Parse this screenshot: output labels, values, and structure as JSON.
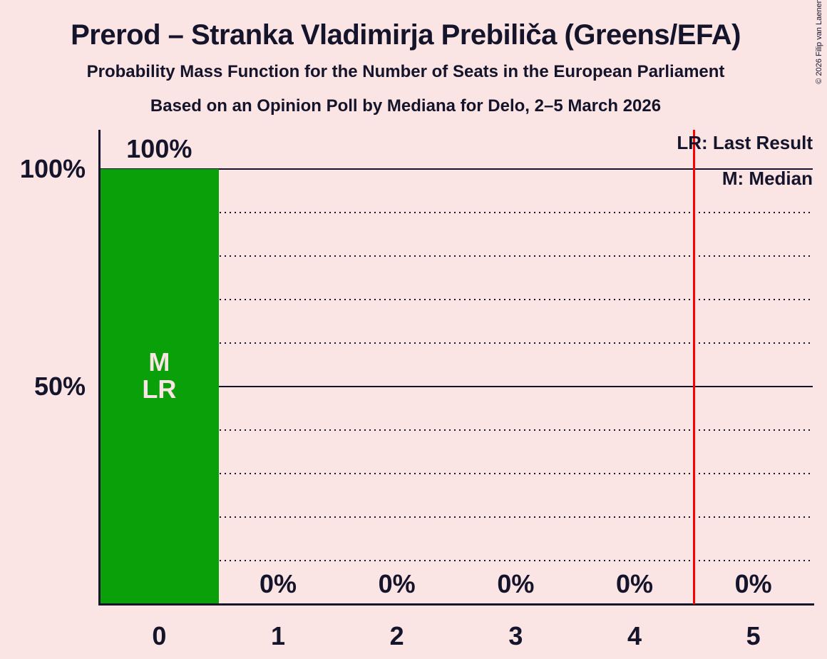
{
  "title": "Prerod – Stranka Vladimirja Prebiliča (Greens/EFA)",
  "subtitle": "Probability Mass Function for the Number of Seats in the European Parliament",
  "source_line": "Based on an Opinion Poll by Mediana for Delo, 2–5 March 2026",
  "copyright": "© 2026 Filip van Laenen",
  "legend": {
    "last_result": "LR: Last Result",
    "median": "M: Median"
  },
  "y_axis_ticks": [
    {
      "label": "100%",
      "value": 100
    },
    {
      "label": "50%",
      "value": 50
    }
  ],
  "chart_data": {
    "type": "bar",
    "title": "Prerod – Stranka Vladimirja Prebiliča (Greens/EFA)",
    "categories": [
      "0",
      "1",
      "2",
      "3",
      "4",
      "5"
    ],
    "values": [
      100,
      0,
      0,
      0,
      0,
      0
    ],
    "bar_labels": [
      "100%",
      "0%",
      "0%",
      "0%",
      "0%",
      "0%"
    ],
    "ylim": [
      0,
      100
    ],
    "y_tick_labels": [
      "100%",
      "50%"
    ],
    "solid_gridlines_percent": [
      100,
      50
    ],
    "dotted_gridlines_percent": [
      90,
      80,
      70,
      60,
      40,
      30,
      20,
      10
    ],
    "grid": "dotted-horizontal",
    "legend_position": "top-right",
    "median_seats": 0,
    "last_result_seats": 0,
    "median_marker": "M",
    "last_result_marker": "LR",
    "red_line_position_seats": 4.5,
    "colors": {
      "background": "#FBE4E4",
      "bar": "#0AA00A",
      "ink": "#14142B",
      "red_line": "#FF0000",
      "bar_marker_text": "#FBE4E4"
    }
  }
}
